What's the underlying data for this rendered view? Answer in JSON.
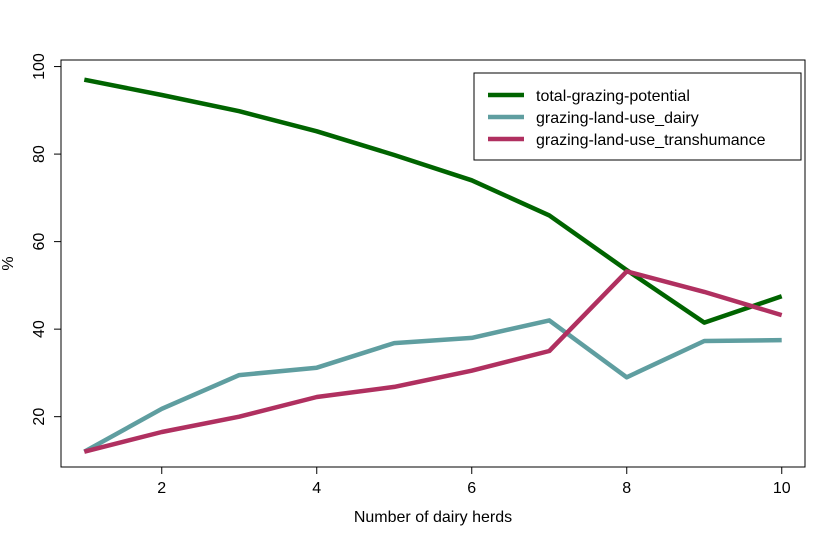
{
  "chart_data": {
    "type": "line",
    "title": "",
    "xlabel": "Number of dairy herds",
    "ylabel": "%",
    "xlim": [
      0.7,
      10.3
    ],
    "ylim": [
      8.5,
      101.5
    ],
    "xticks": [
      2,
      4,
      6,
      8,
      10
    ],
    "yticks": [
      20,
      40,
      60,
      80,
      100
    ],
    "grid": false,
    "legend_position": "top-right",
    "x": [
      1,
      2,
      3,
      4,
      5,
      6,
      7,
      8,
      9,
      10
    ],
    "series": [
      {
        "name": "total-grazing-potential",
        "color": "#006400",
        "values": [
          97,
          93.5,
          89.8,
          85.2,
          79.8,
          74,
          66,
          53.5,
          41.5,
          47.5
        ]
      },
      {
        "name": "grazing-land-use_dairy",
        "color": "#5f9ea0",
        "values": [
          12,
          21.8,
          29.5,
          31.2,
          36.8,
          38,
          42,
          29,
          37.3,
          37.5
        ]
      },
      {
        "name": "grazing-land-use_transhumance",
        "color": "#b03060",
        "values": [
          12,
          16.5,
          20,
          24.5,
          26.8,
          30.5,
          35,
          53.2,
          48.5,
          43.2
        ]
      }
    ]
  }
}
